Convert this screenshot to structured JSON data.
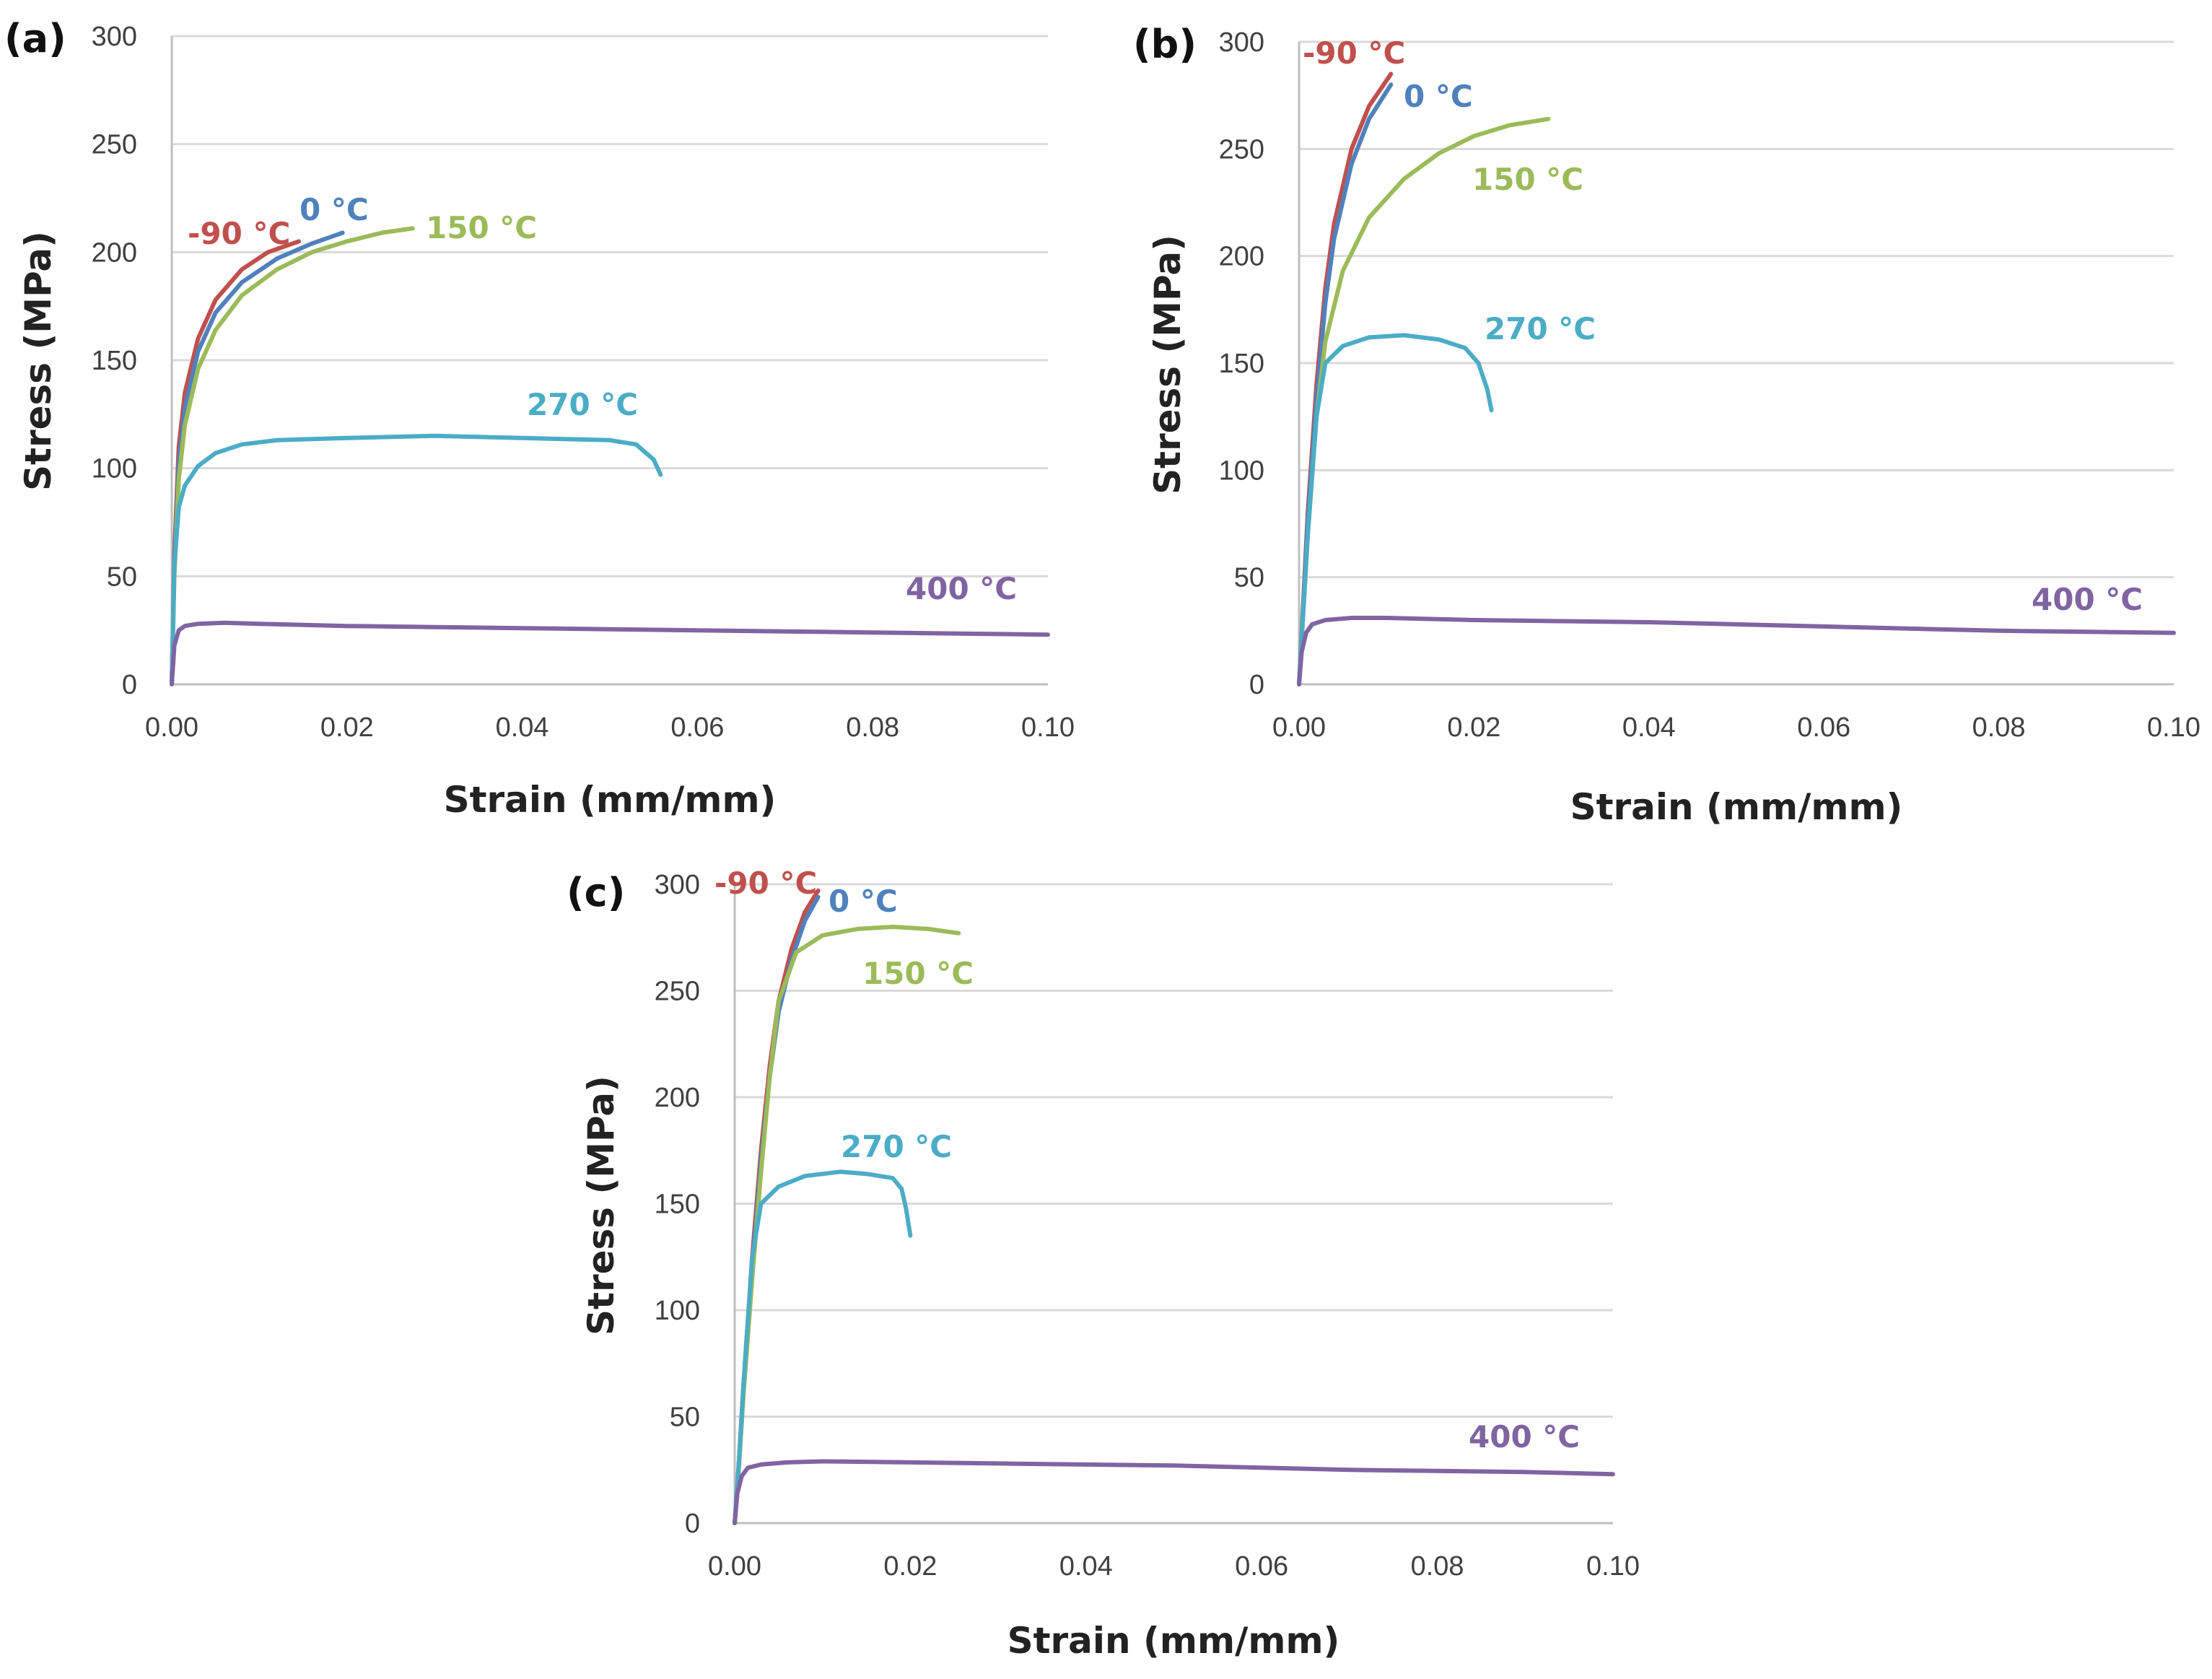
{
  "colors": {
    "series": [
      "#c0504d",
      "#4f81bd",
      "#9bbb59",
      "#4bacc6",
      "#8064a2"
    ]
  },
  "chart_data": [
    {
      "type": "line",
      "panel_label": "(a)",
      "xlabel": "Strain (mm/mm)",
      "ylabel": "Stress (MPa)",
      "xlim": [
        0,
        0.1
      ],
      "ylim": [
        0,
        300
      ],
      "x_ticks": [
        "0.00",
        "0.02",
        "0.04",
        "0.06",
        "0.08",
        "0.10"
      ],
      "y_ticks": [
        "0",
        "50",
        "100",
        "150",
        "200",
        "250",
        "300"
      ],
      "grid": true,
      "series": [
        {
          "name": "-90 °C",
          "x": [
            0,
            0.0003,
            0.0008,
            0.0015,
            0.003,
            0.005,
            0.008,
            0.011,
            0.0145
          ],
          "y": [
            0,
            60,
            110,
            135,
            160,
            178,
            192,
            200,
            205
          ]
        },
        {
          "name": "0 °C",
          "x": [
            0,
            0.0003,
            0.0008,
            0.0015,
            0.003,
            0.005,
            0.008,
            0.012,
            0.016,
            0.0195
          ],
          "y": [
            0,
            55,
            102,
            128,
            154,
            172,
            186,
            197,
            204,
            209
          ]
        },
        {
          "name": "150 °C",
          "x": [
            0,
            0.0003,
            0.0008,
            0.0015,
            0.003,
            0.005,
            0.008,
            0.012,
            0.016,
            0.02,
            0.024,
            0.0275
          ],
          "y": [
            0,
            50,
            95,
            120,
            146,
            164,
            180,
            192,
            200,
            205,
            209,
            211
          ]
        },
        {
          "name": "270 °C",
          "x": [
            0,
            0.0003,
            0.0008,
            0.0015,
            0.003,
            0.005,
            0.008,
            0.012,
            0.02,
            0.03,
            0.04,
            0.05,
            0.053,
            0.055,
            0.0558
          ],
          "y": [
            0,
            55,
            82,
            92,
            101,
            107,
            111,
            113,
            114,
            115,
            114,
            113,
            111,
            104,
            97
          ]
        },
        {
          "name": "400 °C",
          "x": [
            0,
            0.0003,
            0.0008,
            0.0015,
            0.003,
            0.006,
            0.01,
            0.02,
            0.03,
            0.04,
            0.05,
            0.06,
            0.07,
            0.08,
            0.09,
            0.1
          ],
          "y": [
            0,
            18,
            25,
            27,
            28,
            28.5,
            28,
            27,
            26.5,
            26,
            25.5,
            25,
            24.5,
            24,
            23.5,
            23
          ]
        }
      ]
    },
    {
      "type": "line",
      "panel_label": "(b)",
      "xlabel": "Strain (mm/mm)",
      "ylabel": "Stress (MPa)",
      "xlim": [
        0,
        0.1
      ],
      "ylim": [
        0,
        300
      ],
      "x_ticks": [
        "0.00",
        "0.02",
        "0.04",
        "0.06",
        "0.08",
        "0.10"
      ],
      "y_ticks": [
        "0",
        "50",
        "100",
        "150",
        "200",
        "250",
        "300"
      ],
      "grid": true,
      "series": [
        {
          "name": "-90 °C",
          "x": [
            0,
            0.0005,
            0.001,
            0.002,
            0.003,
            0.004,
            0.006,
            0.008,
            0.0105
          ],
          "y": [
            0,
            40,
            80,
            140,
            185,
            215,
            250,
            270,
            285
          ]
        },
        {
          "name": "0 °C",
          "x": [
            0,
            0.0005,
            0.001,
            0.002,
            0.003,
            0.004,
            0.006,
            0.008,
            0.0105
          ],
          "y": [
            0,
            38,
            76,
            133,
            178,
            208,
            243,
            264,
            280
          ]
        },
        {
          "name": "150 °C",
          "x": [
            0,
            0.0005,
            0.001,
            0.002,
            0.003,
            0.005,
            0.008,
            0.012,
            0.016,
            0.02,
            0.024,
            0.0285
          ],
          "y": [
            0,
            35,
            70,
            125,
            160,
            193,
            218,
            236,
            248,
            256,
            261,
            264
          ]
        },
        {
          "name": "270 °C",
          "x": [
            0,
            0.0005,
            0.001,
            0.002,
            0.003,
            0.005,
            0.008,
            0.012,
            0.016,
            0.019,
            0.0205,
            0.0215,
            0.022
          ],
          "y": [
            0,
            35,
            70,
            125,
            150,
            158,
            162,
            163,
            161,
            157,
            150,
            138,
            128
          ]
        },
        {
          "name": "400 °C",
          "x": [
            0,
            0.0003,
            0.0008,
            0.0015,
            0.003,
            0.006,
            0.01,
            0.02,
            0.03,
            0.04,
            0.05,
            0.06,
            0.07,
            0.08,
            0.09,
            0.1
          ],
          "y": [
            0,
            15,
            24,
            28,
            30,
            31,
            31,
            30,
            29.5,
            29,
            28,
            27,
            26,
            25,
            24.5,
            24
          ]
        }
      ]
    },
    {
      "type": "line",
      "panel_label": "(c)",
      "xlabel": "Strain (mm/mm)",
      "ylabel": "Stress (MPa)",
      "xlim": [
        0,
        0.1
      ],
      "ylim": [
        0,
        300
      ],
      "x_ticks": [
        "0.00",
        "0.02",
        "0.04",
        "0.06",
        "0.08",
        "0.10"
      ],
      "y_ticks": [
        "0",
        "50",
        "100",
        "150",
        "200",
        "250",
        "300"
      ],
      "grid": true,
      "series": [
        {
          "name": "-90 °C",
          "x": [
            0,
            0.0005,
            0.001,
            0.002,
            0.003,
            0.004,
            0.005,
            0.0065,
            0.008,
            0.0095
          ],
          "y": [
            0,
            30,
            65,
            125,
            175,
            215,
            245,
            270,
            287,
            297
          ]
        },
        {
          "name": "0 °C",
          "x": [
            0,
            0.0005,
            0.001,
            0.002,
            0.003,
            0.004,
            0.005,
            0.0065,
            0.008,
            0.0095
          ],
          "y": [
            0,
            28,
            62,
            120,
            170,
            210,
            240,
            265,
            283,
            294
          ]
        },
        {
          "name": "150 °C",
          "x": [
            0,
            0.0005,
            0.001,
            0.002,
            0.003,
            0.004,
            0.005,
            0.007,
            0.01,
            0.014,
            0.018,
            0.022,
            0.0255
          ],
          "y": [
            0,
            28,
            60,
            115,
            165,
            210,
            245,
            268,
            276,
            279,
            280,
            279,
            277
          ]
        },
        {
          "name": "270 °C",
          "x": [
            0,
            0.0005,
            0.001,
            0.002,
            0.003,
            0.005,
            0.008,
            0.012,
            0.015,
            0.018,
            0.019,
            0.0195,
            0.02
          ],
          "y": [
            0,
            30,
            65,
            125,
            150,
            158,
            163,
            165,
            164,
            162,
            157,
            148,
            135
          ]
        },
        {
          "name": "400 °C",
          "x": [
            0,
            0.0003,
            0.0008,
            0.0015,
            0.003,
            0.006,
            0.01,
            0.02,
            0.03,
            0.04,
            0.05,
            0.06,
            0.07,
            0.08,
            0.09,
            0.1
          ],
          "y": [
            0,
            14,
            22,
            26,
            27.5,
            28.5,
            29,
            28.5,
            28,
            27.5,
            27,
            26,
            25,
            24.5,
            24,
            23
          ]
        }
      ]
    }
  ]
}
